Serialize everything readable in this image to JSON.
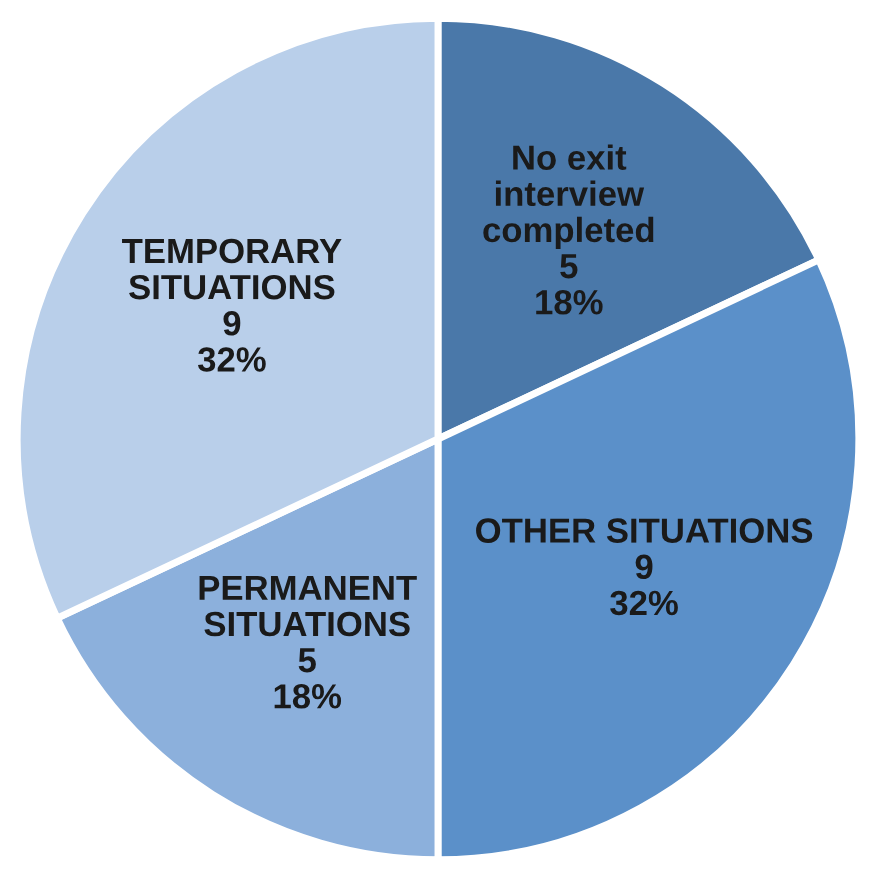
{
  "chart_data": {
    "type": "pie",
    "categories": [
      "No exit\ninterview\ncompleted",
      "OTHER SITUATIONS",
      "PERMANENT\nSITUATIONS",
      "TEMPORARY\nSITUATIONS"
    ],
    "values": [
      18,
      32,
      18,
      32
    ],
    "value_labels": [
      "5\n18%",
      "9\n32%",
      "5\n18%",
      "9\n32%"
    ],
    "colors": [
      "#4a78a9",
      "#5b90c9",
      "#8cb0dc",
      "#b9cfea"
    ],
    "legend": false
  }
}
